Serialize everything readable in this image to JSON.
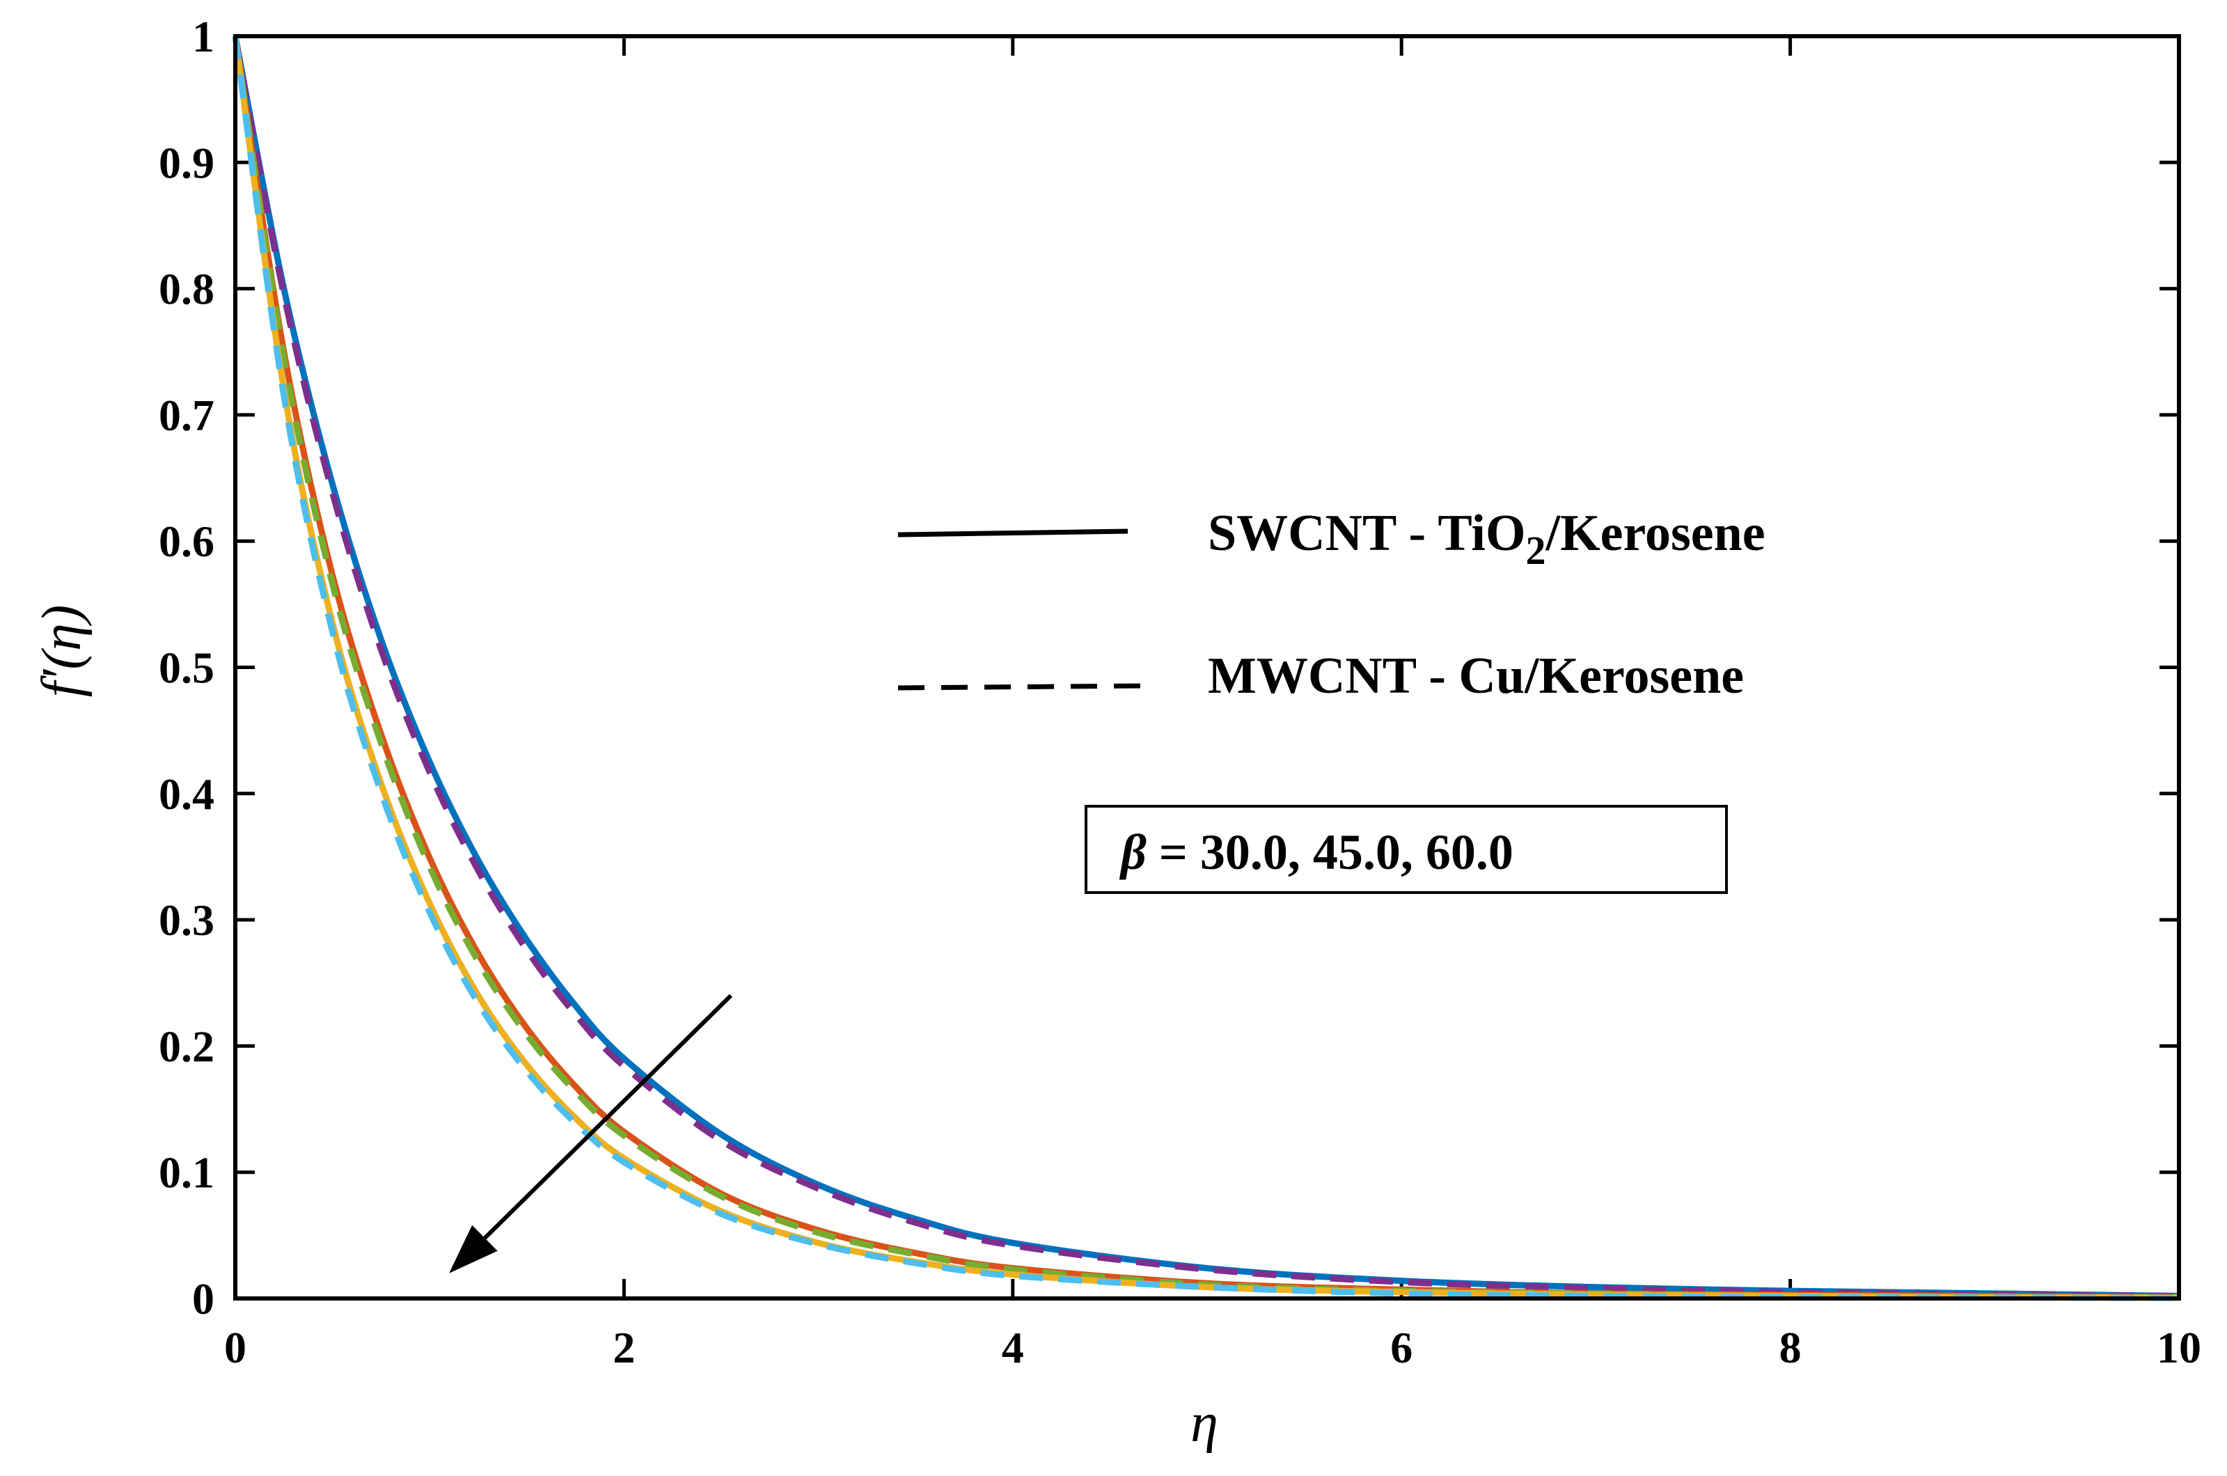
{
  "chart_data": {
    "type": "line",
    "xlabel": "η",
    "ylabel": "f′(η)",
    "xlim": [
      0,
      10
    ],
    "ylim": [
      0,
      1
    ],
    "xticks": [
      "0",
      "2",
      "4",
      "6",
      "8",
      "10"
    ],
    "yticks": [
      "0",
      "0.1",
      "0.2",
      "0.3",
      "0.4",
      "0.5",
      "0.6",
      "0.7",
      "0.8",
      "0.9",
      "1"
    ],
    "grid": false,
    "legend_position": "right-middle",
    "legend": [
      {
        "style": "solid",
        "main": "SWCNT - TiO",
        "sub": "2",
        "tail": "/Kerosene"
      },
      {
        "style": "dashed",
        "main": "MWCNT - Cu/Kerosene",
        "sub": "",
        "tail": ""
      }
    ],
    "annotation": {
      "symbol": "β",
      "text": " = 30.0, 45.0, 60.0",
      "arrow_from": [
        2.55,
        0.24
      ],
      "arrow_to": [
        1.1,
        0.02
      ]
    },
    "x": [
      0,
      0.25,
      0.5,
      0.75,
      1,
      1.25,
      1.5,
      1.75,
      2,
      2.5,
      3,
      3.5,
      4,
      5,
      6,
      7,
      8,
      9,
      10
    ],
    "series": [
      {
        "style": "solid",
        "color": "#0072BD",
        "values": [
          1.0,
          0.8,
          0.645,
          0.522,
          0.425,
          0.347,
          0.284,
          0.232,
          0.19,
          0.13,
          0.09,
          0.063,
          0.044,
          0.024,
          0.014,
          0.009,
          0.006,
          0.004,
          0.002
        ]
      },
      {
        "style": "dashed",
        "color": "#7E2F8E",
        "values": [
          1.0,
          0.795,
          0.638,
          0.514,
          0.417,
          0.339,
          0.276,
          0.225,
          0.184,
          0.125,
          0.087,
          0.06,
          0.042,
          0.023,
          0.013,
          0.008,
          0.005,
          0.003,
          0.002
        ]
      },
      {
        "style": "solid",
        "color": "#D95319",
        "values": [
          1.0,
          0.75,
          0.573,
          0.447,
          0.349,
          0.273,
          0.214,
          0.168,
          0.132,
          0.083,
          0.054,
          0.036,
          0.024,
          0.012,
          0.007,
          0.004,
          0.003,
          0.002,
          0.001
        ]
      },
      {
        "style": "dashed",
        "color": "#77AC30",
        "values": [
          1.0,
          0.745,
          0.566,
          0.44,
          0.342,
          0.267,
          0.209,
          0.164,
          0.129,
          0.081,
          0.052,
          0.035,
          0.023,
          0.011,
          0.006,
          0.004,
          0.002,
          0.001,
          0.001
        ]
      },
      {
        "style": "solid",
        "color": "#EDB120",
        "values": [
          1.0,
          0.72,
          0.535,
          0.408,
          0.313,
          0.24,
          0.185,
          0.143,
          0.111,
          0.069,
          0.044,
          0.029,
          0.019,
          0.009,
          0.005,
          0.003,
          0.002,
          0.001,
          0.0005
        ]
      },
      {
        "style": "dashed",
        "color": "#4DBEEE",
        "values": [
          1.0,
          0.715,
          0.528,
          0.401,
          0.306,
          0.234,
          0.18,
          0.139,
          0.108,
          0.067,
          0.043,
          0.028,
          0.018,
          0.009,
          0.004,
          0.002,
          0.001,
          0.0008,
          0.0004
        ]
      }
    ]
  }
}
